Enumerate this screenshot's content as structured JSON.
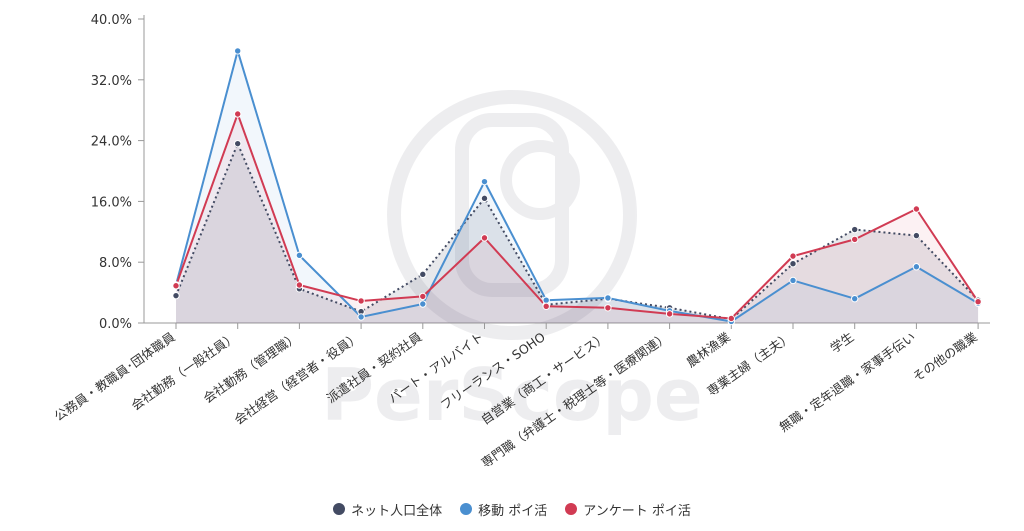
{
  "chart_data": {
    "type": "line",
    "categories": [
      "公務員・教職員･団体職員",
      "会社勤務（一般社員）",
      "会社勤務（管理職）",
      "会社経営（経営者・役員）",
      "派遣社員・契約社員",
      "パート・アルバイト",
      "フリーランス・SOHO",
      "自営業（商工・サービス）",
      "専門職（弁護士・税理士等・医療関連）",
      "農林漁業",
      "専業主婦（主夫）",
      "学生",
      "無職・定年退職・家事手伝い",
      "その他の職業"
    ],
    "series": [
      {
        "name": "ネット人口全体",
        "color": "#434b63",
        "style": "dotted-area",
        "values": [
          3.6,
          23.6,
          4.5,
          1.5,
          6.4,
          16.4,
          2.4,
          3.2,
          2.0,
          0.5,
          7.8,
          12.3,
          11.5,
          3.0
        ]
      },
      {
        "name": "移動 ポイ活",
        "color": "#4a8fd0",
        "style": "solid-area",
        "values": [
          5.0,
          35.8,
          8.9,
          0.8,
          2.5,
          18.6,
          3.0,
          3.3,
          1.6,
          0.2,
          5.6,
          3.2,
          7.4,
          2.6
        ]
      },
      {
        "name": "アンケート ポイ活",
        "color": "#d13b53",
        "style": "solid-area",
        "values": [
          4.9,
          27.5,
          5.0,
          2.9,
          3.5,
          11.2,
          2.2,
          2.0,
          1.2,
          0.6,
          8.8,
          11.0,
          15.0,
          2.8
        ]
      }
    ],
    "yticks": [
      "0.0%",
      "8.0%",
      "16.0%",
      "24.0%",
      "32.0%",
      "40.0%"
    ],
    "ylim": [
      0,
      40
    ],
    "legend_position": "bottom-center",
    "grid": false,
    "watermark_text": "PerScope"
  }
}
